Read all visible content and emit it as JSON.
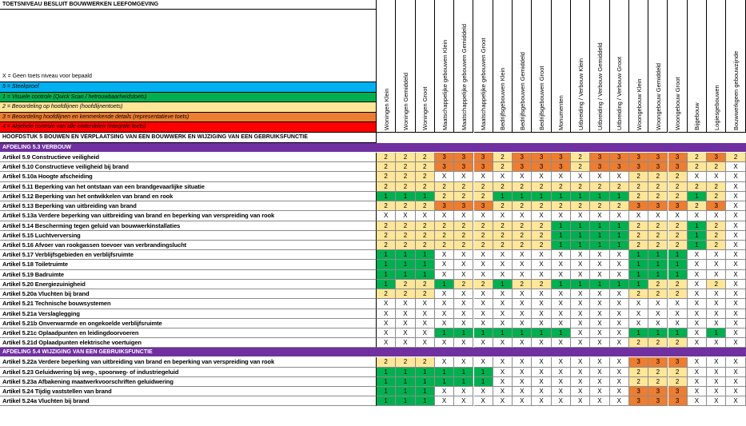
{
  "title": "TOETSNIVEAU BESLUIT BOUWWERKEN LEEFOMGEVING",
  "legend": {
    "x": "X = Geen toets niveau voor bepaald",
    "items": [
      {
        "label": "5 = Steekproef",
        "color": "#00b0f0"
      },
      {
        "label": "1 = Visuele controle (Quick Scan / hetrouwbaarheidstoets)",
        "color": "#00b050"
      },
      {
        "label": "2 = Beoordeling op hoofdlijnen (hoofdlijnentoets)",
        "color": "#ffe699"
      },
      {
        "label": "3 = Beoordeling hoofdlijnen en kenmerkende details (representatieve toets)",
        "color": "#ed7d31"
      },
      {
        "label": "4 = Algehele controle van alle onderdelen (integrale toets)",
        "color": "#ff0000"
      }
    ]
  },
  "columns": [
    "Woningen Klein",
    "Woningen Gemiddeld",
    "Woningen Groot",
    "Maatschappelijke gebouwen Klein",
    "Maatschappelijke gebouwen Gemiddeld",
    "Maatschappelijke gebouwen Groot",
    "Bedrijfsgebouwen Klein",
    "Bedrijfsgebouwen Gemiddeld",
    "Bedrijfsgebouwen Groot",
    "Monumenten",
    "Uitbreiding / Verbouw Klein",
    "Uitbreiding / Verbouw Gemiddeld",
    "Uitbreiding / Verbouw Groot",
    "Woongebouw Klein",
    "Woongebouw Gemiddeld",
    "Woongebouw Groot",
    "Bijgebouw",
    "Logiesgebouwen",
    "Bouwwerkgeen gebouwzijnde"
  ],
  "value_colors": {
    "1": "#00b050",
    "2": "#ffe699",
    "3": "#ed7d31",
    "X": "#ffffff"
  },
  "sections": [
    {
      "chapter": "HOOFDSTUK 5 BOUWEN EN VERPLAATSING VAN EEN BOUWWERK EN WIJZIGING VAN EEN GEBRUIKSFUNCTIE",
      "afdeling": "AFDELING 5.3 VERBOUW",
      "rows": [
        {
          "label": "Artikel 5.9 Constructieve veiligheid",
          "values": [
            "2",
            "2",
            "2",
            "3",
            "3",
            "3",
            "2",
            "3",
            "3",
            "3",
            "2",
            "3",
            "3",
            "3",
            "3",
            "3",
            "2",
            "3",
            "2"
          ]
        },
        {
          "label": "Artikel 5.10 Constructieve veiligheid bij brand",
          "values": [
            "2",
            "2",
            "2",
            "3",
            "3",
            "3",
            "2",
            "3",
            "3",
            "3",
            "2",
            "3",
            "3",
            "3",
            "3",
            "3",
            "2",
            "2",
            "X"
          ]
        },
        {
          "label": "Artikel 5.10a Hoogte afscheiding",
          "values": [
            "2",
            "2",
            "2",
            "X",
            "X",
            "X",
            "X",
            "X",
            "X",
            "X",
            "X",
            "X",
            "X",
            "2",
            "2",
            "2",
            "X",
            "X",
            "X"
          ]
        },
        {
          "label": "Artikel 5.11 Beperking van het ontstaan van een brandgevaarlijke situatie",
          "values": [
            "2",
            "2",
            "2",
            "2",
            "2",
            "2",
            "2",
            "2",
            "2",
            "2",
            "2",
            "2",
            "2",
            "2",
            "2",
            "2",
            "2",
            "2",
            "X"
          ]
        },
        {
          "label": "Artikel 5.12 Beperking van het ontwikkelen van brand en rook",
          "values": [
            "1",
            "1",
            "1",
            "2",
            "2",
            "2",
            "1",
            "1",
            "1",
            "1",
            "1",
            "1",
            "1",
            "2",
            "2",
            "2",
            "1",
            "2",
            "X"
          ]
        },
        {
          "label": "Artikel 5.13 Beperking van uitbreiding van brand",
          "values": [
            "2",
            "2",
            "2",
            "3",
            "3",
            "3",
            "2",
            "2",
            "2",
            "2",
            "2",
            "2",
            "2",
            "3",
            "3",
            "3",
            "2",
            "3",
            "X"
          ]
        },
        {
          "label": "Artikel 5.13a Verdere beperking van uitbreiding van brand en beperking van verspreiding van rook",
          "values": [
            "X",
            "X",
            "X",
            "X",
            "X",
            "X",
            "X",
            "X",
            "X",
            "X",
            "X",
            "X",
            "X",
            "X",
            "X",
            "X",
            "X",
            "X",
            "X"
          ]
        },
        {
          "label": "Artikel 5.14 Bescherming tegen geluid van bouwwerkinstallaties",
          "values": [
            "2",
            "2",
            "2",
            "2",
            "2",
            "2",
            "2",
            "2",
            "2",
            "1",
            "1",
            "1",
            "1",
            "2",
            "2",
            "2",
            "1",
            "2",
            "X"
          ]
        },
        {
          "label": "Artikel 5.15 Luchtverversing",
          "values": [
            "2",
            "2",
            "2",
            "2",
            "2",
            "2",
            "2",
            "2",
            "2",
            "1",
            "1",
            "1",
            "1",
            "2",
            "2",
            "2",
            "1",
            "2",
            "X"
          ]
        },
        {
          "label": "Artikel 5.16 Afvoer van rookgassen toevoer van verbrandingslucht",
          "values": [
            "2",
            "2",
            "2",
            "2",
            "2",
            "2",
            "2",
            "2",
            "2",
            "1",
            "1",
            "1",
            "1",
            "2",
            "2",
            "2",
            "1",
            "2",
            "X"
          ]
        },
        {
          "label": "Artikel 5.17 Verblijfsgebieden en verblijfsruimte",
          "values": [
            "1",
            "1",
            "1",
            "X",
            "X",
            "X",
            "X",
            "X",
            "X",
            "X",
            "X",
            "X",
            "X",
            "1",
            "1",
            "1",
            "X",
            "X",
            "X"
          ]
        },
        {
          "label": "Artikel 5.18 Toiletruimte",
          "values": [
            "1",
            "1",
            "1",
            "X",
            "X",
            "X",
            "X",
            "X",
            "X",
            "X",
            "X",
            "X",
            "X",
            "1",
            "1",
            "1",
            "X",
            "X",
            "X"
          ]
        },
        {
          "label": "Artikel 5.19 Badruimte",
          "values": [
            "1",
            "1",
            "1",
            "X",
            "X",
            "X",
            "X",
            "X",
            "X",
            "X",
            "X",
            "X",
            "X",
            "1",
            "1",
            "1",
            "X",
            "X",
            "X"
          ]
        },
        {
          "label": "Artikel 5.20 Energiezuinigheid",
          "values": [
            "1",
            "2",
            "2",
            "1",
            "2",
            "2",
            "1",
            "2",
            "2",
            "1",
            "1",
            "1",
            "1",
            "1",
            "2",
            "2",
            "X",
            "2",
            "X"
          ]
        },
        {
          "label": "Artikel 5.20a Vluchten bij brand",
          "values": [
            "2",
            "2",
            "2",
            "X",
            "X",
            "X",
            "X",
            "X",
            "X",
            "X",
            "X",
            "X",
            "X",
            "2",
            "2",
            "2",
            "X",
            "X",
            "X"
          ]
        },
        {
          "label": "Artikel 5.21 Technische bouwsystemen",
          "values": [
            "X",
            "X",
            "X",
            "X",
            "X",
            "X",
            "X",
            "X",
            "X",
            "X",
            "X",
            "X",
            "X",
            "X",
            "X",
            "X",
            "X",
            "X",
            "X"
          ]
        },
        {
          "label": "Artikel 5.21a Verslaglegging",
          "values": [
            "X",
            "X",
            "X",
            "X",
            "X",
            "X",
            "X",
            "X",
            "X",
            "X",
            "X",
            "X",
            "X",
            "X",
            "X",
            "X",
            "X",
            "X",
            "X"
          ]
        },
        {
          "label": "Artikel 5.21b Onverwarmde en ongekoelde verblijfsruimte",
          "values": [
            "X",
            "X",
            "X",
            "X",
            "X",
            "X",
            "X",
            "X",
            "X",
            "X",
            "X",
            "X",
            "X",
            "X",
            "X",
            "X",
            "X",
            "X",
            "X"
          ]
        },
        {
          "label": "Artikel 5.21c Oplaadpunten en leidingdoorvoeren",
          "values": [
            "X",
            "X",
            "X",
            "1",
            "1",
            "1",
            "1",
            "1",
            "1",
            "1",
            "X",
            "X",
            "X",
            "1",
            "1",
            "1",
            "X",
            "1",
            "X"
          ]
        },
        {
          "label": "Artikel 5.21d Oplaadpunten elektrische voertuigen",
          "values": [
            "X",
            "X",
            "X",
            "X",
            "X",
            "X",
            "X",
            "X",
            "X",
            "X",
            "X",
            "X",
            "X",
            "2",
            "2",
            "2",
            "X",
            "X",
            "X"
          ]
        }
      ]
    },
    {
      "afdeling": "AFDELING 5.4 WIJZIGING VAN EEN GEBRUIKSFUNCTIE",
      "rows": [
        {
          "label": "Artikel 5.22a Verdere beperking van uitbreiding van brand en beperking van verspreiding van rook",
          "values": [
            "2",
            "2",
            "2",
            "X",
            "X",
            "X",
            "X",
            "X",
            "X",
            "X",
            "X",
            "X",
            "X",
            "3",
            "3",
            "3",
            "X",
            "X",
            "X"
          ]
        },
        {
          "label": "Artikel 5.23 Geluidwering bij weg-, spoorweg- of industriegeluid",
          "values": [
            "1",
            "1",
            "1",
            "1",
            "1",
            "1",
            "X",
            "X",
            "X",
            "X",
            "X",
            "X",
            "X",
            "2",
            "2",
            "2",
            "X",
            "X",
            "X"
          ]
        },
        {
          "label": "Artikel 5.23a Afbakening maatwerkvoorschriften geluidwering",
          "values": [
            "1",
            "1",
            "1",
            "1",
            "1",
            "1",
            "X",
            "X",
            "X",
            "X",
            "X",
            "X",
            "X",
            "2",
            "2",
            "2",
            "X",
            "X",
            "X"
          ]
        },
        {
          "label": "Artikel 5.24 Tijdig vaststellen van brand",
          "values": [
            "1",
            "1",
            "1",
            "X",
            "X",
            "X",
            "X",
            "X",
            "X",
            "X",
            "X",
            "X",
            "X",
            "3",
            "3",
            "3",
            "X",
            "X",
            "X"
          ]
        },
        {
          "label": "Artikel 5.24a Vluchten bij brand",
          "values": [
            "1",
            "1",
            "1",
            "X",
            "X",
            "X",
            "X",
            "X",
            "X",
            "X",
            "X",
            "X",
            "X",
            "3",
            "3",
            "3",
            "X",
            "X",
            "X"
          ]
        }
      ]
    }
  ]
}
